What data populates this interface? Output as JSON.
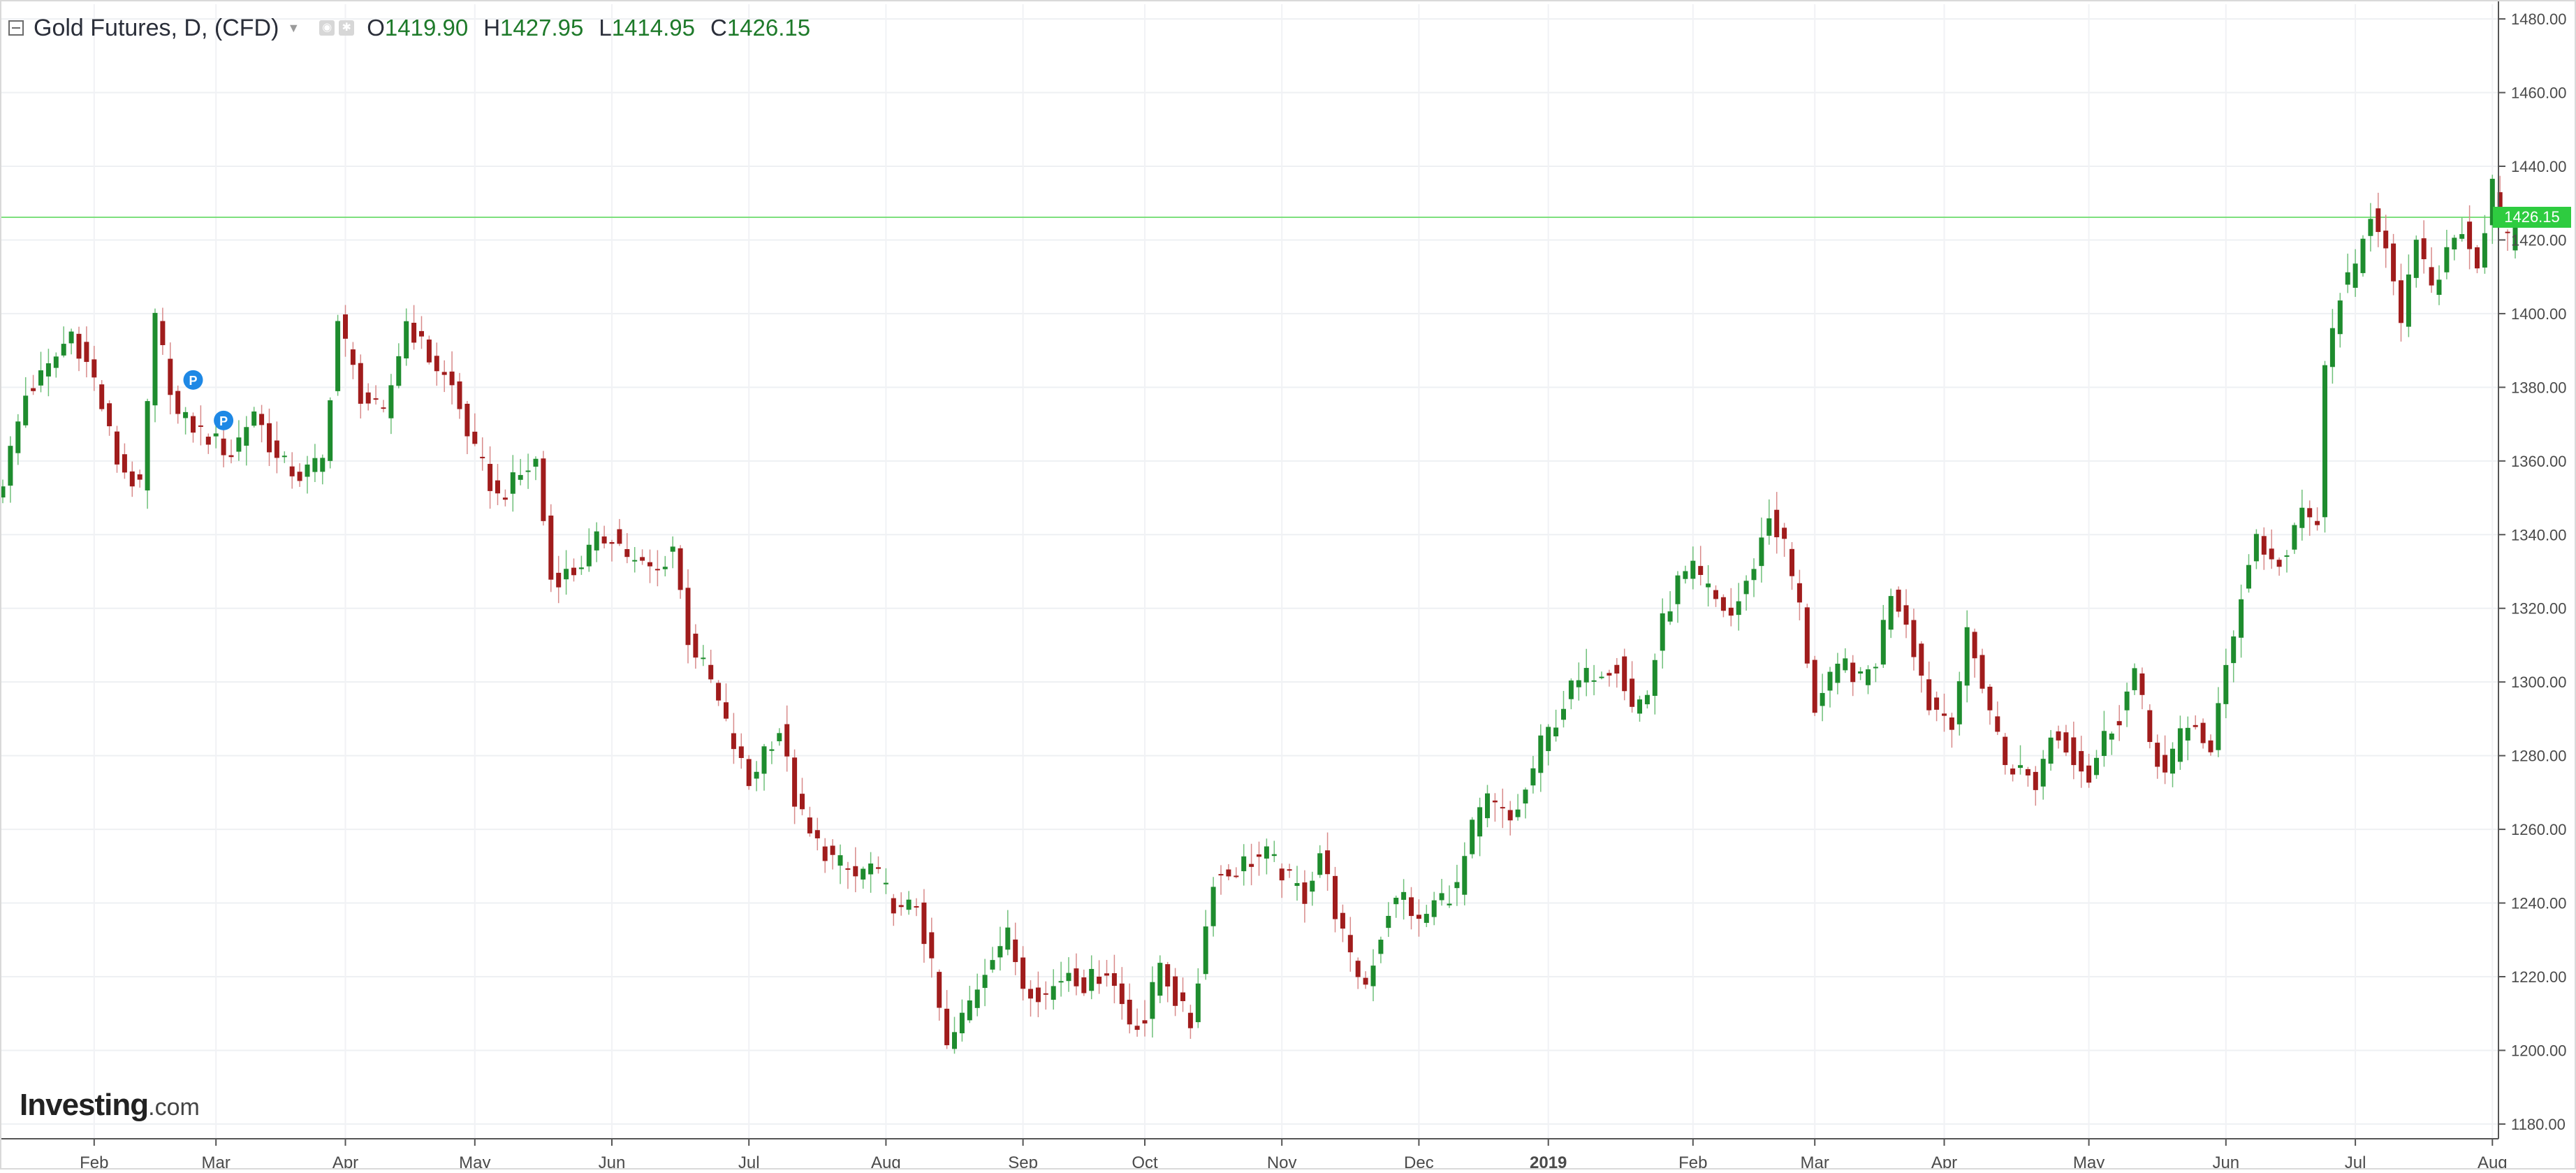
{
  "header": {
    "title": "Gold Futures, D, (CFD)",
    "open_label": "O",
    "open": "1419.90",
    "high_label": "H",
    "high": "1427.95",
    "low_label": "L",
    "low": "1414.95",
    "close_label": "C",
    "close": "1426.15"
  },
  "last_price_flag": "1426.15",
  "logo": {
    "brand": "Investing",
    "suffix": ".com"
  },
  "chart_data": {
    "type": "candlestick",
    "series_name": "Gold Futures, D, (CFD)",
    "ylim": [
      1176,
      1484
    ],
    "y_ticks": [
      "1180.00",
      "1200.00",
      "1220.00",
      "1240.00",
      "1260.00",
      "1280.00",
      "1300.00",
      "1320.00",
      "1340.00",
      "1360.00",
      "1380.00",
      "1400.00",
      "1420.00",
      "1440.00",
      "1460.00",
      "1480.00"
    ],
    "x_ticks": [
      {
        "label": "Feb",
        "index": 12,
        "bold": false
      },
      {
        "label": "Mar",
        "index": 28,
        "bold": false
      },
      {
        "label": "Apr",
        "index": 45,
        "bold": false
      },
      {
        "label": "May",
        "index": 62,
        "bold": false
      },
      {
        "label": "Jun",
        "index": 80,
        "bold": false
      },
      {
        "label": "Jul",
        "index": 98,
        "bold": false
      },
      {
        "label": "Aug",
        "index": 116,
        "bold": false
      },
      {
        "label": "Sep",
        "index": 134,
        "bold": false
      },
      {
        "label": "Oct",
        "index": 150,
        "bold": false
      },
      {
        "label": "Nov",
        "index": 168,
        "bold": false
      },
      {
        "label": "Dec",
        "index": 186,
        "bold": false
      },
      {
        "label": "2019",
        "index": 203,
        "bold": true
      },
      {
        "label": "Feb",
        "index": 222,
        "bold": false
      },
      {
        "label": "Mar",
        "index": 238,
        "bold": false
      },
      {
        "label": "Apr",
        "index": 255,
        "bold": false
      },
      {
        "label": "May",
        "index": 274,
        "bold": false
      },
      {
        "label": "Jun",
        "index": 292,
        "bold": false
      },
      {
        "label": "Jul",
        "index": 309,
        "bold": false
      },
      {
        "label": "Aug",
        "index": 327,
        "bold": false
      }
    ],
    "last_price": 1426.15,
    "grid": true,
    "up_color": "#1e8c2e",
    "down_color": "#a01c1c",
    "price_line_color": "#7ee07e",
    "marker_label": "P",
    "marker_color": "#1e88e5",
    "markers": [
      {
        "index": 25,
        "price": 1382
      },
      {
        "index": 29,
        "price": 1371
      }
    ],
    "close_anchors": [
      [
        0,
        1355
      ],
      [
        3,
        1378
      ],
      [
        6,
        1385
      ],
      [
        9,
        1395
      ],
      [
        12,
        1382
      ],
      [
        15,
        1360
      ],
      [
        18,
        1352
      ],
      [
        20,
        1398
      ],
      [
        23,
        1372
      ],
      [
        26,
        1368
      ],
      [
        30,
        1362
      ],
      [
        33,
        1374
      ],
      [
        36,
        1360
      ],
      [
        39,
        1356
      ],
      [
        42,
        1360
      ],
      [
        44,
        1398
      ],
      [
        47,
        1378
      ],
      [
        50,
        1372
      ],
      [
        53,
        1398
      ],
      [
        56,
        1388
      ],
      [
        59,
        1380
      ],
      [
        62,
        1362
      ],
      [
        65,
        1350
      ],
      [
        68,
        1356
      ],
      [
        70,
        1360
      ],
      [
        72,
        1328
      ],
      [
        75,
        1330
      ],
      [
        78,
        1338
      ],
      [
        80,
        1340
      ],
      [
        83,
        1332
      ],
      [
        86,
        1330
      ],
      [
        88,
        1337
      ],
      [
        90,
        1312
      ],
      [
        93,
        1300
      ],
      [
        95,
        1288
      ],
      [
        98,
        1272
      ],
      [
        100,
        1282
      ],
      [
        102,
        1287
      ],
      [
        104,
        1268
      ],
      [
        106,
        1258
      ],
      [
        109,
        1252
      ],
      [
        112,
        1247
      ],
      [
        114,
        1250
      ],
      [
        116,
        1243
      ],
      [
        118,
        1237
      ],
      [
        120,
        1240
      ],
      [
        122,
        1222
      ],
      [
        124,
        1200
      ],
      [
        127,
        1213
      ],
      [
        130,
        1227
      ],
      [
        132,
        1231
      ],
      [
        134,
        1218
      ],
      [
        137,
        1215
      ],
      [
        140,
        1222
      ],
      [
        142,
        1218
      ],
      [
        145,
        1222
      ],
      [
        148,
        1208
      ],
      [
        150,
        1208
      ],
      [
        152,
        1224
      ],
      [
        154,
        1214
      ],
      [
        156,
        1207
      ],
      [
        157,
        1220
      ],
      [
        159,
        1247
      ],
      [
        161,
        1248
      ],
      [
        163,
        1251
      ],
      [
        166,
        1253
      ],
      [
        169,
        1246
      ],
      [
        171,
        1242
      ],
      [
        173,
        1254
      ],
      [
        175,
        1238
      ],
      [
        177,
        1224
      ],
      [
        179,
        1218
      ],
      [
        182,
        1238
      ],
      [
        184,
        1242
      ],
      [
        186,
        1234
      ],
      [
        188,
        1240
      ],
      [
        191,
        1244
      ],
      [
        193,
        1260
      ],
      [
        195,
        1268
      ],
      [
        198,
        1262
      ],
      [
        200,
        1270
      ],
      [
        202,
        1283
      ],
      [
        204,
        1290
      ],
      [
        206,
        1298
      ],
      [
        209,
        1303
      ],
      [
        212,
        1305
      ],
      [
        214,
        1293
      ],
      [
        216,
        1297
      ],
      [
        218,
        1316
      ],
      [
        220,
        1327
      ],
      [
        222,
        1330
      ],
      [
        225,
        1322
      ],
      [
        227,
        1318
      ],
      [
        229,
        1326
      ],
      [
        232,
        1345
      ],
      [
        234,
        1337
      ],
      [
        236,
        1320
      ],
      [
        238,
        1293
      ],
      [
        240,
        1300
      ],
      [
        242,
        1305
      ],
      [
        244,
        1300
      ],
      [
        246,
        1306
      ],
      [
        248,
        1325
      ],
      [
        250,
        1317
      ],
      [
        253,
        1294
      ],
      [
        256,
        1290
      ],
      [
        258,
        1312
      ],
      [
        260,
        1300
      ],
      [
        263,
        1278
      ],
      [
        265,
        1276
      ],
      [
        267,
        1272
      ],
      [
        269,
        1286
      ],
      [
        271,
        1283
      ],
      [
        274,
        1274
      ],
      [
        276,
        1285
      ],
      [
        278,
        1291
      ],
      [
        280,
        1303
      ],
      [
        282,
        1284
      ],
      [
        284,
        1275
      ],
      [
        286,
        1285
      ],
      [
        288,
        1289
      ],
      [
        290,
        1280
      ],
      [
        292,
        1304
      ],
      [
        294,
        1324
      ],
      [
        296,
        1340
      ],
      [
        298,
        1332
      ],
      [
        300,
        1334
      ],
      [
        302,
        1346
      ],
      [
        304,
        1343
      ],
      [
        305,
        1384
      ],
      [
        307,
        1406
      ],
      [
        309,
        1411
      ],
      [
        311,
        1428
      ],
      [
        313,
        1420
      ],
      [
        315,
        1395
      ],
      [
        317,
        1421
      ],
      [
        319,
        1405
      ],
      [
        321,
        1418
      ],
      [
        323,
        1424
      ],
      [
        325,
        1413
      ],
      [
        327,
        1434
      ],
      [
        328,
        1424
      ],
      [
        329,
        1419
      ],
      [
        330,
        1426.15
      ]
    ]
  }
}
